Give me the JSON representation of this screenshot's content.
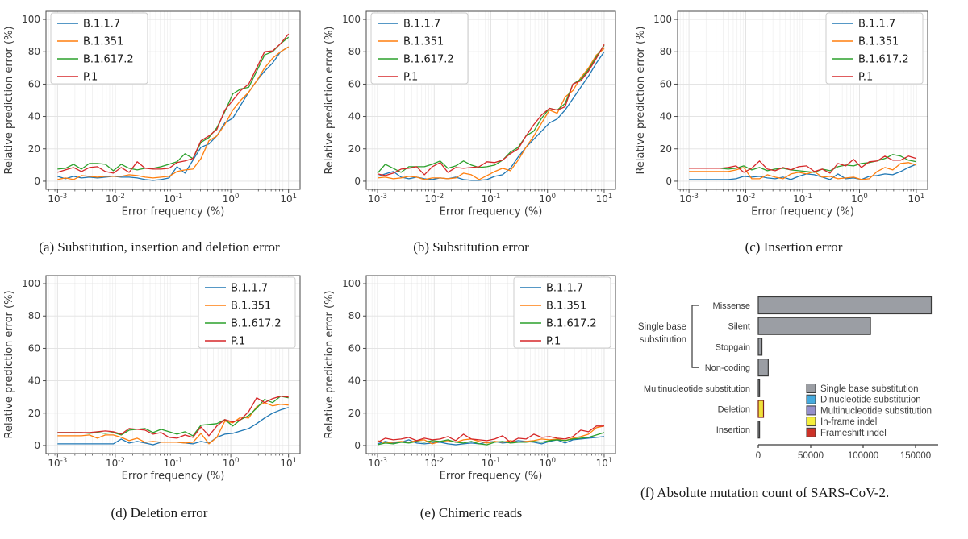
{
  "chart_data": [
    {
      "type": "line",
      "panel": "a",
      "caption": "(a) Substitution, insertion and deletion error",
      "xlabel": "Error frequency (%)",
      "ylabel": "Relative prediction error (%)",
      "xscale": "log",
      "xlim": [
        0.001,
        10
      ],
      "ylim": [
        0,
        100
      ],
      "yticks": [
        0,
        20,
        40,
        60,
        80,
        100
      ],
      "xtick_exponents": [
        -3,
        -2,
        -1,
        0,
        1
      ],
      "grid": true,
      "legend_position": "upper-left",
      "x": [
        0.001,
        0.00137,
        0.00189,
        0.0026,
        0.00356,
        0.0049,
        0.00672,
        0.00924,
        0.0127,
        0.0174,
        0.024,
        0.0329,
        0.0452,
        0.0621,
        0.0853,
        0.117,
        0.161,
        0.221,
        0.304,
        0.418,
        0.574,
        0.789,
        1.083,
        1.487,
        2.042,
        2.806,
        3.855,
        5.297,
        7.278,
        10.0
      ],
      "series": [
        {
          "name": "B.1.1.7",
          "color": "#1f77b4",
          "values": [
            3,
            1.5,
            3,
            2,
            2.5,
            2,
            2.5,
            3,
            2.5,
            2.5,
            2,
            1,
            0.5,
            1,
            2,
            9,
            5,
            13,
            21,
            23,
            28,
            36,
            39,
            47,
            55,
            62,
            68,
            73,
            80,
            83
          ]
        },
        {
          "name": "B.1.351",
          "color": "#ff7f0e",
          "values": [
            1,
            2,
            1,
            3.5,
            3,
            2.5,
            3,
            3,
            3,
            4,
            3.5,
            2.5,
            2,
            2.5,
            3,
            6,
            7,
            7.5,
            14,
            25,
            28,
            35,
            44,
            50,
            55,
            62,
            70,
            76,
            80,
            83
          ]
        },
        {
          "name": "B.1.617.2",
          "color": "#2ca02c",
          "values": [
            7.5,
            8,
            10.5,
            7.5,
            11,
            11,
            10.5,
            6.5,
            10.5,
            8,
            7,
            8,
            8,
            9,
            10.5,
            12,
            17,
            14,
            24,
            27,
            33,
            43,
            54,
            57,
            58,
            68,
            78,
            80,
            85,
            89
          ]
        },
        {
          "name": "P.1",
          "color": "#d62728",
          "values": [
            5.5,
            7,
            8.5,
            6,
            8.5,
            9,
            6,
            5,
            8.5,
            5.5,
            12,
            8,
            7.5,
            7.5,
            8,
            11.5,
            12.5,
            14,
            25,
            28,
            32,
            44,
            50,
            56,
            60,
            70,
            80,
            80.5,
            85,
            91
          ]
        }
      ]
    },
    {
      "type": "line",
      "panel": "b",
      "caption": "(b) Substitution error",
      "xlabel": "Error frequency (%)",
      "ylabel": "Relative prediction error (%)",
      "xscale": "log",
      "xlim": [
        0.001,
        10
      ],
      "ylim": [
        0,
        100
      ],
      "yticks": [
        0,
        20,
        40,
        60,
        80,
        100
      ],
      "xtick_exponents": [
        -3,
        -2,
        -1,
        0,
        1
      ],
      "grid": true,
      "legend_position": "upper-left",
      "x": [
        0.001,
        0.00137,
        0.00189,
        0.0026,
        0.00356,
        0.0049,
        0.00672,
        0.00924,
        0.0127,
        0.0174,
        0.024,
        0.0329,
        0.0452,
        0.0621,
        0.0853,
        0.117,
        0.161,
        0.221,
        0.304,
        0.418,
        0.574,
        0.789,
        1.083,
        1.487,
        2.042,
        2.806,
        3.855,
        5.297,
        7.278,
        10.0
      ],
      "series": [
        {
          "name": "B.1.1.7",
          "color": "#1f77b4",
          "values": [
            3,
            4.5,
            6,
            2.5,
            1.5,
            2.5,
            1.5,
            1,
            2,
            1.5,
            2.5,
            1,
            0.5,
            0.5,
            1,
            3,
            4,
            8,
            15,
            21,
            26,
            31,
            36,
            38.5,
            44,
            51,
            58,
            65,
            73,
            80
          ]
        },
        {
          "name": "B.1.351",
          "color": "#ff7f0e",
          "values": [
            2,
            2.5,
            1.5,
            2,
            3,
            2.5,
            1,
            2,
            2,
            1.5,
            2,
            5,
            4,
            1,
            3.5,
            6,
            8,
            6.5,
            13,
            21,
            28,
            36,
            44,
            42,
            52,
            56,
            64,
            70,
            78,
            82
          ]
        },
        {
          "name": "B.1.617.2",
          "color": "#2ca02c",
          "values": [
            5,
            10.5,
            8,
            5.5,
            9,
            9,
            9,
            10.5,
            12.5,
            8,
            9.5,
            12.5,
            10,
            8.5,
            9,
            10,
            13,
            18,
            21,
            28,
            31,
            39,
            45,
            44,
            48,
            60,
            63,
            69,
            77,
            84
          ]
        },
        {
          "name": "P.1",
          "color": "#d62728",
          "values": [
            4.5,
            3.5,
            5,
            7.5,
            8,
            9,
            4,
            9,
            11.5,
            5.5,
            8.5,
            8,
            8.5,
            9,
            12,
            11.5,
            13,
            17,
            20,
            28,
            35,
            41,
            45,
            44,
            46,
            60,
            62,
            68,
            76,
            84.5
          ]
        }
      ]
    },
    {
      "type": "line",
      "panel": "c",
      "caption": "(c) Insertion error",
      "xlabel": "Error frequency (%)",
      "ylabel": "Relative prediction error (%)",
      "xscale": "log",
      "xlim": [
        0.001,
        10
      ],
      "ylim": [
        0,
        100
      ],
      "yticks": [
        0,
        20,
        40,
        60,
        80,
        100
      ],
      "xtick_exponents": [
        -3,
        -2,
        -1,
        0,
        1
      ],
      "grid": true,
      "legend_position": "upper-right",
      "x": [
        0.001,
        0.00137,
        0.00189,
        0.0026,
        0.00356,
        0.0049,
        0.00672,
        0.00924,
        0.0127,
        0.0174,
        0.024,
        0.0329,
        0.0452,
        0.0621,
        0.0853,
        0.117,
        0.161,
        0.221,
        0.304,
        0.418,
        0.574,
        0.789,
        1.083,
        1.487,
        2.042,
        2.806,
        3.855,
        5.297,
        7.278,
        10.0
      ],
      "series": [
        {
          "name": "B.1.1.7",
          "color": "#1f77b4",
          "values": [
            1,
            1,
            1,
            1,
            1,
            1,
            1.5,
            3,
            2.5,
            3,
            2,
            1.5,
            2.5,
            1,
            3,
            4.5,
            4,
            2.5,
            1,
            4.5,
            1.5,
            2,
            1,
            3,
            3.5,
            4.5,
            4,
            6,
            8.5,
            10.5
          ]
        },
        {
          "name": "B.1.351",
          "color": "#ff7f0e",
          "values": [
            6,
            6,
            6,
            6,
            6,
            6,
            7,
            8.5,
            1.5,
            1.5,
            4,
            2.5,
            1.5,
            4.5,
            5.5,
            4.5,
            6,
            2.5,
            3,
            1.5,
            2,
            2.5,
            1,
            1.5,
            6,
            8.5,
            7,
            11,
            11.5,
            10
          ]
        },
        {
          "name": "B.1.617.2",
          "color": "#2ca02c",
          "values": [
            8,
            8,
            8,
            8,
            8,
            7.5,
            8,
            9.5,
            7,
            8.5,
            6.5,
            7.5,
            8,
            7,
            6.5,
            6,
            5.5,
            7.5,
            6.5,
            9,
            10,
            9.5,
            11,
            11.5,
            12.5,
            14,
            16.5,
            15.5,
            13,
            12
          ]
        },
        {
          "name": "P.1",
          "color": "#d62728",
          "values": [
            8,
            8,
            8,
            8,
            8,
            8.5,
            9.5,
            5.5,
            8,
            12.5,
            7.5,
            6.5,
            8.5,
            7,
            9,
            9.5,
            6,
            7.5,
            5,
            11,
            9.5,
            13.5,
            8.5,
            12,
            12.5,
            15.5,
            13,
            13,
            15.5,
            14
          ]
        }
      ]
    },
    {
      "type": "line",
      "panel": "d",
      "caption": "(d) Deletion error",
      "xlabel": "Error frequency (%)",
      "ylabel": "Relative prediction error (%)",
      "xscale": "log",
      "xlim": [
        0.001,
        10
      ],
      "ylim": [
        0,
        100
      ],
      "yticks": [
        0,
        20,
        40,
        60,
        80,
        100
      ],
      "xtick_exponents": [
        -3,
        -2,
        -1,
        0,
        1
      ],
      "grid": true,
      "legend_position": "upper-right",
      "x": [
        0.001,
        0.00137,
        0.00189,
        0.0026,
        0.00356,
        0.0049,
        0.00672,
        0.00924,
        0.0127,
        0.0174,
        0.024,
        0.0329,
        0.0452,
        0.0621,
        0.0853,
        0.117,
        0.161,
        0.221,
        0.304,
        0.418,
        0.574,
        0.789,
        1.083,
        1.487,
        2.042,
        2.806,
        3.855,
        5.297,
        7.278,
        10.0
      ],
      "series": [
        {
          "name": "B.1.1.7",
          "color": "#1f77b4",
          "values": [
            1,
            1,
            1,
            1,
            1,
            1,
            1,
            1,
            4,
            1.5,
            2.5,
            1.5,
            0.5,
            2,
            2,
            2,
            1.5,
            1,
            2.5,
            1.5,
            5,
            7,
            7.5,
            9,
            10.5,
            13.5,
            17,
            20,
            22,
            23.5
          ]
        },
        {
          "name": "B.1.351",
          "color": "#ff7f0e",
          "values": [
            6,
            6,
            6,
            6,
            6.5,
            4.5,
            6.5,
            6.5,
            5,
            3,
            4.5,
            2,
            2.5,
            2,
            2,
            2,
            1.5,
            2,
            7.5,
            1,
            5,
            15,
            14,
            17.5,
            17,
            24,
            26.5,
            24.5,
            25.5,
            25
          ]
        },
        {
          "name": "B.1.617.2",
          "color": "#2ca02c",
          "values": [
            8,
            8,
            8,
            8,
            7.5,
            8,
            7.5,
            8,
            6.5,
            9.5,
            10,
            10.5,
            8,
            10,
            8.5,
            7,
            8.5,
            6,
            12.5,
            13,
            13.5,
            16,
            12,
            16,
            18.5,
            23,
            28.5,
            26.5,
            30.5,
            29.5
          ]
        },
        {
          "name": "P.1",
          "color": "#d62728",
          "values": [
            8,
            8,
            8,
            8,
            8,
            8.5,
            9,
            8.5,
            7,
            10.5,
            10,
            9.5,
            7,
            8,
            5,
            4.5,
            6.5,
            5,
            11.5,
            6,
            12,
            16,
            14.5,
            16,
            21,
            29.5,
            26.5,
            29,
            30.5,
            30
          ]
        }
      ]
    },
    {
      "type": "line",
      "panel": "e",
      "caption": "(e) Chimeric reads",
      "xlabel": "Error frequency (%)",
      "ylabel": "Relative prediction error (%)",
      "xscale": "log",
      "xlim": [
        0.001,
        10
      ],
      "ylim": [
        0,
        100
      ],
      "yticks": [
        0,
        20,
        40,
        60,
        80,
        100
      ],
      "xtick_exponents": [
        -3,
        -2,
        -1,
        0,
        1
      ],
      "grid": true,
      "legend_position": "upper-right",
      "x": [
        0.001,
        0.00137,
        0.00189,
        0.0026,
        0.00356,
        0.0049,
        0.00672,
        0.00924,
        0.0127,
        0.0174,
        0.024,
        0.0329,
        0.0452,
        0.0621,
        0.0853,
        0.117,
        0.161,
        0.221,
        0.304,
        0.418,
        0.574,
        0.789,
        1.083,
        1.487,
        2.042,
        2.806,
        3.855,
        5.297,
        7.278,
        10.0
      ],
      "series": [
        {
          "name": "B.1.1.7",
          "color": "#1f77b4",
          "values": [
            1,
            2.5,
            1.5,
            2,
            3.5,
            1.5,
            1,
            1.5,
            2,
            1,
            0.5,
            1,
            1.5,
            1,
            2,
            2.5,
            1.5,
            2,
            3,
            2.5,
            2,
            1,
            2.5,
            3.5,
            1.5,
            3.5,
            4,
            4.5,
            5,
            5.5
          ]
        },
        {
          "name": "B.1.351",
          "color": "#ff7f0e",
          "values": [
            3,
            1.5,
            2,
            2.5,
            2,
            3,
            3.5,
            1,
            2.5,
            3,
            2,
            3.5,
            4,
            2.5,
            1.5,
            2.5,
            2,
            3,
            2,
            2.5,
            3,
            4,
            3.5,
            4,
            3,
            4.5,
            5.5,
            7,
            11,
            12
          ]
        },
        {
          "name": "B.1.617.2",
          "color": "#2ca02c",
          "values": [
            0.5,
            1.5,
            1,
            2,
            1.5,
            2.5,
            2,
            3,
            2.5,
            3.5,
            2,
            1.5,
            2.5,
            1,
            0.5,
            2,
            2.5,
            1.5,
            2,
            2,
            2.5,
            2,
            3,
            3.5,
            3,
            4,
            4.5,
            5,
            6.5,
            8
          ]
        },
        {
          "name": "P.1",
          "color": "#d62728",
          "values": [
            2,
            4.5,
            3.5,
            4,
            5,
            3,
            4.5,
            3.5,
            4,
            5.5,
            3,
            7,
            4,
            3.5,
            3,
            4,
            6,
            2,
            4.5,
            4,
            7,
            5,
            5.5,
            4.5,
            4,
            5.5,
            9.5,
            8.5,
            12,
            12
          ]
        }
      ]
    },
    {
      "type": "bar",
      "panel": "f",
      "caption": "(f) Absolute mutation count of SARS-CoV-2.",
      "orientation": "horizontal",
      "categories": [
        "Missense",
        "Silent",
        "Stopgain",
        "Non-coding",
        "Multinucleotide substitution",
        "Deletion",
        "Insertion"
      ],
      "values": [
        165000,
        107000,
        3500,
        9500,
        1200,
        5000,
        1200
      ],
      "bar_fill": [
        "#9b9ea4",
        "#9b9ea4",
        "#9b9ea4",
        "#9b9ea4",
        "#9b9ea4",
        "#f0e13a",
        "#9b9ea4"
      ],
      "bar_edge": [
        "#3a3a3a",
        "#3a3a3a",
        "#3a3a3a",
        "#3a3a3a",
        "#3a3a3a",
        "#7a2020",
        "#3a3a3a"
      ],
      "xticks": [
        0,
        50000,
        100000,
        150000
      ],
      "xtick_labels": [
        "0",
        "50000",
        "100000",
        "150000"
      ],
      "xlim": [
        0,
        172000
      ],
      "group_bracket": {
        "label_lines": [
          "Single base",
          "substitution"
        ],
        "from_index": 0,
        "to_index": 3
      },
      "legend": [
        {
          "label": "Single base substitution",
          "color": "#9b9ea4"
        },
        {
          "label": "Dinucleotide substitution",
          "color": "#45aade"
        },
        {
          "label": "Multinucleotide substitution",
          "color": "#9590cb"
        },
        {
          "label": "In-frame indel",
          "color": "#f5ef3d"
        },
        {
          "label": "Frameshift indel",
          "color": "#cc3228"
        }
      ]
    }
  ]
}
